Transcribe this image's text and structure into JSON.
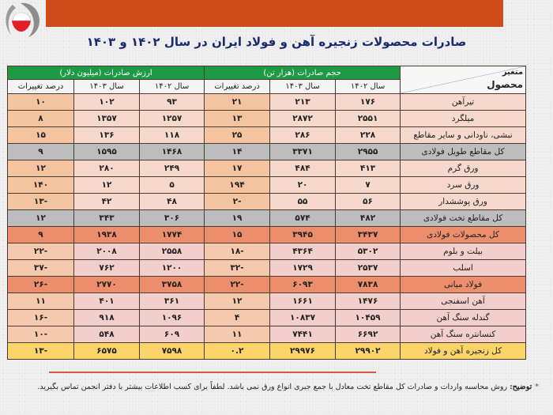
{
  "header": {
    "title": "صادرات محصولات زنجیره آهن و فولاد ایران در سال ۱۴۰۲ و ۱۴۰۳",
    "brand_color": "#cf4b1c",
    "logo": "isa-logo-icon"
  },
  "table": {
    "corner": {
      "variable_label": "متغیر",
      "product_label": "محصول"
    },
    "groups": {
      "volume": "حجم صادرات (هزار تن)",
      "value": "ارزش صادرات (میلیون دلار)"
    },
    "subheaders": {
      "y1402": "سال ۱۴۰۲",
      "y1403": "سال ۱۴۰۳",
      "pct": "درصد تغییرات"
    },
    "rows": [
      {
        "name": "تیرآهن",
        "vol1402": "۱۷۶",
        "vol1403": "۲۱۳",
        "volPct": "۲۱",
        "val1402": "۹۳",
        "val1403": "۱۰۲",
        "valPct": "۱۰",
        "type": "normal"
      },
      {
        "name": "میلگرد",
        "vol1402": "۲۵۵۱",
        "vol1403": "۲۸۷۲",
        "volPct": "۱۳",
        "val1402": "۱۲۵۷",
        "val1403": "۱۳۵۷",
        "valPct": "۸",
        "type": "normal"
      },
      {
        "name": "نبشی، ناودانی و سایر مقاطع",
        "vol1402": "۲۲۸",
        "vol1403": "۲۸۶",
        "volPct": "۲۵",
        "val1402": "۱۱۸",
        "val1403": "۱۳۶",
        "valPct": "۱۵",
        "type": "normal"
      },
      {
        "name": "کل مقاطع طویل فولادی",
        "vol1402": "۲۹۵۵",
        "vol1403": "۳۳۷۱",
        "volPct": "۱۴",
        "val1402": "۱۴۶۸",
        "val1403": "۱۵۹۵",
        "valPct": "۹",
        "type": "gray"
      },
      {
        "name": "ورق گرم",
        "vol1402": "۴۱۳",
        "vol1403": "۴۸۴",
        "volPct": "۱۷",
        "val1402": "۲۴۹",
        "val1403": "۲۸۰",
        "valPct": "۱۲",
        "type": "normal"
      },
      {
        "name": "ورق سرد",
        "vol1402": "۷",
        "vol1403": "۲۰",
        "volPct": "۱۹۴",
        "val1402": "۵",
        "val1403": "۱۲",
        "valPct": "۱۴۰",
        "type": "normal"
      },
      {
        "name": "ورق پوششدار",
        "vol1402": "۵۶",
        "vol1403": "۵۵",
        "volPct": "-۲",
        "val1402": "۴۸",
        "val1403": "۴۲",
        "valPct": "-۱۳",
        "type": "normal"
      },
      {
        "name": "کل مقاطع تخت فولادی",
        "vol1402": "۴۸۲",
        "vol1403": "۵۷۴",
        "volPct": "۱۹",
        "val1402": "۳۰۶",
        "val1403": "۳۴۳",
        "valPct": "۱۲",
        "type": "gray"
      },
      {
        "name": "کل محصولات فولادی",
        "vol1402": "۳۴۳۷",
        "vol1403": "۳۹۴۵",
        "volPct": "۱۵",
        "val1402": "۱۷۷۴",
        "val1403": "۱۹۳۸",
        "valPct": "۹",
        "type": "total"
      },
      {
        "name": "بیلت و بلوم",
        "vol1402": "۵۳۰۲",
        "vol1403": "۴۳۶۴",
        "volPct": "-۱۸",
        "val1402": "۲۵۵۸",
        "val1403": "۲۰۰۸",
        "valPct": "-۲۲",
        "type": "pink"
      },
      {
        "name": "اسلب",
        "vol1402": "۲۵۳۷",
        "vol1403": "۱۷۲۹",
        "volPct": "-۳۲",
        "val1402": "۱۲۰۰",
        "val1403": "۷۶۲",
        "valPct": "-۳۷",
        "type": "pink"
      },
      {
        "name": "فولاد میانی",
        "vol1402": "۷۸۳۸",
        "vol1403": "۶۰۹۳",
        "volPct": "-۲۲",
        "val1402": "۳۷۵۸",
        "val1403": "۲۷۷۰",
        "valPct": "-۲۶",
        "type": "total2"
      },
      {
        "name": "آهن اسفنجی",
        "vol1402": "۱۴۷۶",
        "vol1403": "۱۶۶۱",
        "volPct": "۱۲",
        "val1402": "۳۶۱",
        "val1403": "۴۰۱",
        "valPct": "۱۱",
        "type": "pink"
      },
      {
        "name": "گندله سنگ آهن",
        "vol1402": "۱۰۴۵۹",
        "vol1403": "۱۰۸۳۷",
        "volPct": "۴",
        "val1402": "۱۰۹۶",
        "val1403": "۹۱۸",
        "valPct": "-۱۶",
        "type": "pink"
      },
      {
        "name": "کنسانتره سنگ آهن",
        "vol1402": "۶۶۹۲",
        "vol1403": "۷۴۴۱",
        "volPct": "۱۱",
        "val1402": "۶۰۹",
        "val1403": "۵۴۸",
        "valPct": "-۱۰",
        "type": "pink"
      },
      {
        "name": "کل زنجیره آهن و فولاد",
        "vol1402": "۲۹۹۰۲",
        "vol1403": "۲۹۹۷۶",
        "volPct": "۰.۲",
        "val1402": "۷۵۹۸",
        "val1403": "۶۵۷۵",
        "valPct": "-۱۳",
        "type": "grand"
      }
    ]
  },
  "footnote": {
    "marker": "*",
    "label": "توضیح:",
    "text": "روش محاسبه واردات و صادرات کل مقاطع تخت معادل با جمع جبری انواع ورق نمی باشد. لطفاً برای کسب اطلاعات بیشتر با دفتر انجمن تماس بگیرید."
  }
}
